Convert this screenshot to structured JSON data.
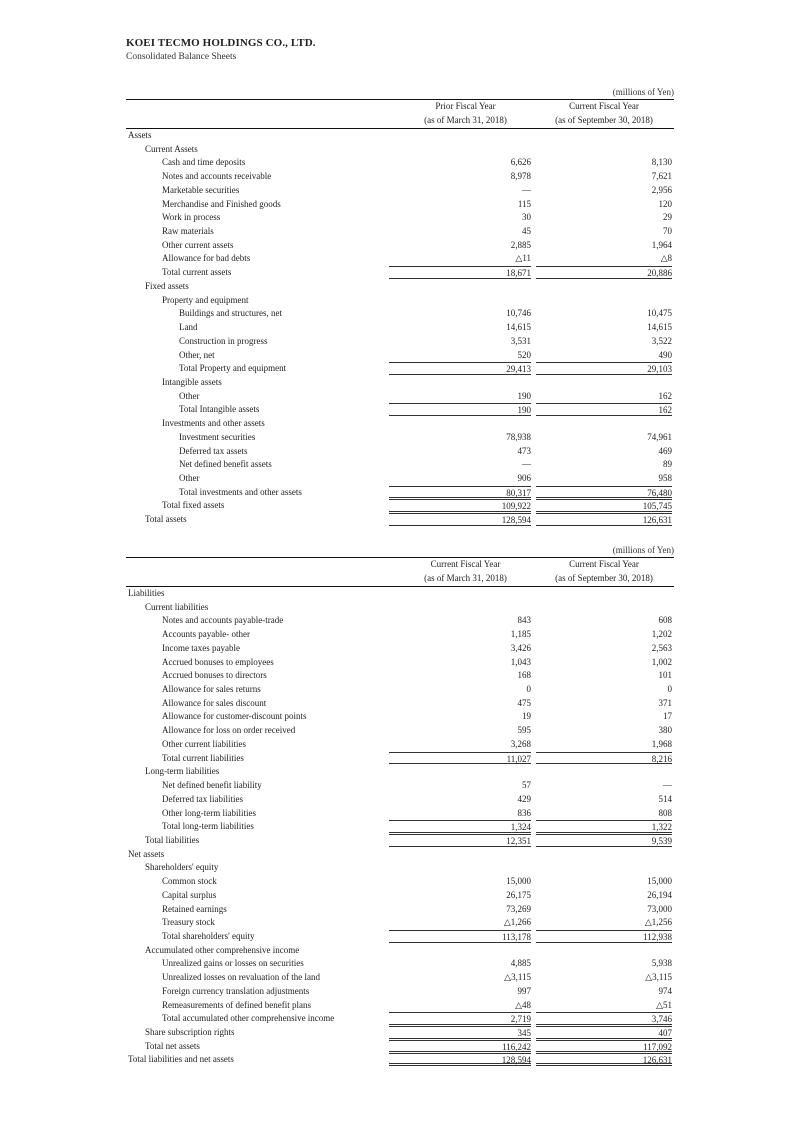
{
  "header": {
    "company": "KOEI TECMO HOLDINGS CO., LTD.",
    "title": "Consolidated Balance Sheets"
  },
  "assets_table": {
    "unit": "(millions of Yen)",
    "col1": [
      "Prior Fiscal Year",
      "(as of March 31, 2018)"
    ],
    "col2": [
      "Current Fiscal Year",
      "(as of September 30, 2018)"
    ],
    "rows": [
      {
        "label": "Assets",
        "indent": 0,
        "prior": "",
        "current": "",
        "type": "head"
      },
      {
        "label": "Current Assets",
        "indent": 1,
        "prior": "",
        "current": "",
        "type": "head"
      },
      {
        "label": "Cash and time deposits",
        "indent": 2,
        "prior": "6,626",
        "current": "8,130",
        "type": "item"
      },
      {
        "label": "Notes and accounts receivable",
        "indent": 2,
        "prior": "8,978",
        "current": "7,621",
        "type": "item"
      },
      {
        "label": "Marketable securities",
        "indent": 2,
        "prior": "—",
        "current": "2,956",
        "type": "item"
      },
      {
        "label": "Merchandise and Finished goods",
        "indent": 2,
        "prior": "115",
        "current": "120",
        "type": "item"
      },
      {
        "label": "Work in process",
        "indent": 2,
        "prior": "30",
        "current": "29",
        "type": "item"
      },
      {
        "label": "Raw materials",
        "indent": 2,
        "prior": "45",
        "current": "70",
        "type": "item"
      },
      {
        "label": "Other current assets",
        "indent": 2,
        "prior": "2,885",
        "current": "1,964",
        "type": "item"
      },
      {
        "label": "Allowance for bad debts",
        "indent": 2,
        "prior": "△11",
        "current": "△8",
        "type": "item"
      },
      {
        "label": "Total current assets",
        "indent": 2,
        "prior": "18,671",
        "current": "20,886",
        "type": "total"
      },
      {
        "label": "Fixed assets",
        "indent": 1,
        "prior": "",
        "current": "",
        "type": "head"
      },
      {
        "label": "Property and equipment",
        "indent": 2,
        "prior": "",
        "current": "",
        "type": "head"
      },
      {
        "label": "Buildings and structures, net",
        "indent": 3,
        "prior": "10,746",
        "current": "10,475",
        "type": "item"
      },
      {
        "label": "Land",
        "indent": 3,
        "prior": "14,615",
        "current": "14,615",
        "type": "item"
      },
      {
        "label": "Construction in progress",
        "indent": 3,
        "prior": "3,531",
        "current": "3,522",
        "type": "item"
      },
      {
        "label": "Other, net",
        "indent": 3,
        "prior": "520",
        "current": "490",
        "type": "item"
      },
      {
        "label": "Total Property and equipment",
        "indent": 3,
        "prior": "29,413",
        "current": "29,103",
        "type": "total"
      },
      {
        "label": "Intangible assets",
        "indent": 2,
        "prior": "",
        "current": "",
        "type": "head"
      },
      {
        "label": "Other",
        "indent": 3,
        "prior": "190",
        "current": "162",
        "type": "item"
      },
      {
        "label": "Total Intangible assets",
        "indent": 3,
        "prior": "190",
        "current": "162",
        "type": "total"
      },
      {
        "label": "Investments and other assets",
        "indent": 2,
        "prior": "",
        "current": "",
        "type": "head"
      },
      {
        "label": "Investment securities",
        "indent": 3,
        "prior": "78,938",
        "current": "74,961",
        "type": "item"
      },
      {
        "label": "Deferred tax assets",
        "indent": 3,
        "prior": "473",
        "current": "469",
        "type": "item"
      },
      {
        "label": "Net defined benefit assets",
        "indent": 3,
        "prior": "—",
        "current": "89",
        "type": "item"
      },
      {
        "label": "Other",
        "indent": 3,
        "prior": "906",
        "current": "958",
        "type": "item"
      },
      {
        "label": "Total investments and other assets",
        "indent": 3,
        "prior": "80,317",
        "current": "76,480",
        "type": "total"
      },
      {
        "label": "Total fixed assets",
        "indent": 2,
        "prior": "109,922",
        "current": "105,745",
        "type": "total"
      },
      {
        "label": "Total assets",
        "indent": 1,
        "prior": "128,594",
        "current": "126,631",
        "type": "total"
      }
    ]
  },
  "liabilities_table": {
    "unit": "(millions of Yen)",
    "col1": [
      "Current Fiscal Year",
      "(as of March 31, 2018)"
    ],
    "col2": [
      "Current Fiscal Year",
      "(as of September 30, 2018)"
    ],
    "rows": [
      {
        "label": "Liabilities",
        "indent": 0,
        "prior": "",
        "current": "",
        "type": "head"
      },
      {
        "label": "Current liabilities",
        "indent": 1,
        "prior": "",
        "current": "",
        "type": "head"
      },
      {
        "label": "Notes and accounts payable-trade",
        "indent": 2,
        "prior": "843",
        "current": "608",
        "type": "item"
      },
      {
        "label": "Accounts payable- other",
        "indent": 2,
        "prior": "1,185",
        "current": "1,202",
        "type": "item"
      },
      {
        "label": "Income taxes payable",
        "indent": 2,
        "prior": "3,426",
        "current": "2,563",
        "type": "item"
      },
      {
        "label": "Accrued bonuses to employees",
        "indent": 2,
        "prior": "1,043",
        "current": "1,002",
        "type": "item"
      },
      {
        "label": "Accrued bonuses to directors",
        "indent": 2,
        "prior": "168",
        "current": "101",
        "type": "item"
      },
      {
        "label": "Allowance for sales returns",
        "indent": 2,
        "prior": "0",
        "current": "0",
        "type": "item"
      },
      {
        "label": "Allowance for sales discount",
        "indent": 2,
        "prior": "475",
        "current": "371",
        "type": "item"
      },
      {
        "label": "Allowance for customer-discount points",
        "indent": 2,
        "prior": "19",
        "current": "17",
        "type": "item"
      },
      {
        "label": "Allowance for loss on order received",
        "indent": 2,
        "prior": "595",
        "current": "380",
        "type": "item"
      },
      {
        "label": "Other current liabilities",
        "indent": 2,
        "prior": "3,268",
        "current": "1,968",
        "type": "item"
      },
      {
        "label": "Total current liabilities",
        "indent": 2,
        "prior": "11,027",
        "current": "8,216",
        "type": "total"
      },
      {
        "label": "Long-term liabilities",
        "indent": 1,
        "prior": "",
        "current": "",
        "type": "head"
      },
      {
        "label": "Net defined benefit liability",
        "indent": 2,
        "prior": "57",
        "current": "—",
        "type": "item"
      },
      {
        "label": "Deferred tax liabilities",
        "indent": 2,
        "prior": "429",
        "current": "514",
        "type": "item"
      },
      {
        "label": "Other long-term liabilities",
        "indent": 2,
        "prior": "836",
        "current": "808",
        "type": "item"
      },
      {
        "label": "Total long-term liabilities",
        "indent": 2,
        "prior": "1,324",
        "current": "1,322",
        "type": "total"
      },
      {
        "label": "Total liabilities",
        "indent": 1,
        "prior": "12,351",
        "current": "9,539",
        "type": "total"
      },
      {
        "label": "Net assets",
        "indent": 0,
        "prior": "",
        "current": "",
        "type": "head"
      },
      {
        "label": "Shareholders' equity",
        "indent": 1,
        "prior": "",
        "current": "",
        "type": "head"
      },
      {
        "label": "Common stock",
        "indent": 2,
        "prior": "15,000",
        "current": "15,000",
        "type": "item"
      },
      {
        "label": "Capital surplus",
        "indent": 2,
        "prior": "26,175",
        "current": "26,194",
        "type": "item"
      },
      {
        "label": "Retained earnings",
        "indent": 2,
        "prior": "73,269",
        "current": "73,000",
        "type": "item"
      },
      {
        "label": "Treasury stock",
        "indent": 2,
        "prior": "△1,266",
        "current": "△1,256",
        "type": "item"
      },
      {
        "label": "Total shareholders' equity",
        "indent": 2,
        "prior": "113,178",
        "current": "112,938",
        "type": "total"
      },
      {
        "label": "Accumulated other comprehensive income",
        "indent": 1,
        "prior": "",
        "current": "",
        "type": "head"
      },
      {
        "label": "Unrealized gains or losses on securities",
        "indent": 2,
        "prior": "4,885",
        "current": "5,938",
        "type": "item"
      },
      {
        "label": "Unrealized losses on revaluation of the land",
        "indent": 2,
        "prior": "△3,115",
        "current": "△3,115",
        "type": "item"
      },
      {
        "label": "Foreign currency translation adjustments",
        "indent": 2,
        "prior": "997",
        "current": "974",
        "type": "item"
      },
      {
        "label": "Remeasurements of defined benefit plans",
        "indent": 2,
        "prior": "△48",
        "current": "△51",
        "type": "item"
      },
      {
        "label": "Total accumulated other comprehensive income",
        "indent": 2,
        "prior": "2,719",
        "current": "3,746",
        "type": "total"
      },
      {
        "label": "Share subscription rights",
        "indent": 1,
        "prior": "345",
        "current": "407",
        "type": "total"
      },
      {
        "label": "Total net assets",
        "indent": 1,
        "prior": "116,242",
        "current": "117,092",
        "type": "total"
      },
      {
        "label": "Total liabilities and net assets",
        "indent": 0,
        "prior": "128,594",
        "current": "126,631",
        "type": "final"
      }
    ]
  }
}
